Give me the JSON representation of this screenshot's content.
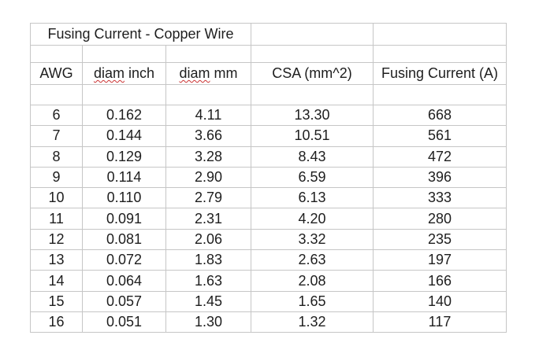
{
  "sheet": {
    "title": "Fusing Current - Copper Wire",
    "column_keys": [
      "awg",
      "diam-inch",
      "diam-mm",
      "csa",
      "fusing-current"
    ],
    "headers": [
      {
        "parts": [
          {
            "text": "AWG",
            "squiggle": false
          }
        ]
      },
      {
        "parts": [
          {
            "text": "diam",
            "squiggle": true
          },
          {
            "text": " inch",
            "squiggle": false
          }
        ]
      },
      {
        "parts": [
          {
            "text": "diam",
            "squiggle": true
          },
          {
            "text": " mm",
            "squiggle": false
          }
        ]
      },
      {
        "parts": [
          {
            "text": "CSA (mm^2)",
            "squiggle": false
          }
        ]
      },
      {
        "parts": [
          {
            "text": "Fusing Current (A)",
            "squiggle": false
          }
        ]
      }
    ],
    "rows": [
      [
        "6",
        "0.162",
        "4.11",
        "13.30",
        "668"
      ],
      [
        "7",
        "0.144",
        "3.66",
        "10.51",
        "561"
      ],
      [
        "8",
        "0.129",
        "3.28",
        "8.43",
        "472"
      ],
      [
        "9",
        "0.114",
        "2.90",
        "6.59",
        "396"
      ],
      [
        "10",
        "0.110",
        "2.79",
        "6.13",
        "333"
      ],
      [
        "11",
        "0.091",
        "2.31",
        "4.20",
        "280"
      ],
      [
        "12",
        "0.081",
        "2.06",
        "3.32",
        "235"
      ],
      [
        "13",
        "0.072",
        "1.83",
        "2.63",
        "197"
      ],
      [
        "14",
        "0.064",
        "1.63",
        "2.08",
        "166"
      ],
      [
        "15",
        "0.057",
        "1.45",
        "1.65",
        "140"
      ],
      [
        "16",
        "0.051",
        "1.30",
        "1.32",
        "117"
      ]
    ],
    "colors": {
      "background": "#ffffff",
      "grid": "#c6c6c6",
      "text": "#1e1e1e",
      "spellcheck": "#cc3333"
    }
  }
}
